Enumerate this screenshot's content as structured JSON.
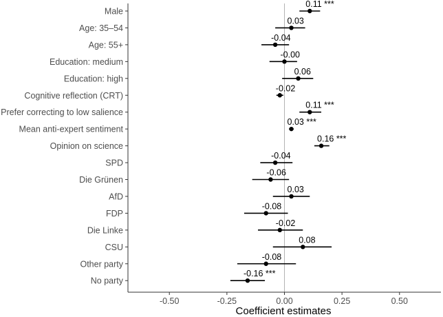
{
  "chart_data": {
    "type": "scatter",
    "subtype": "coefficient-plot",
    "xlabel": "Coefficient estimates",
    "ylabel": "",
    "xlim": [
      -0.68,
      0.68
    ],
    "xticks": [
      -0.5,
      -0.25,
      0.0,
      0.25,
      0.5
    ],
    "xtick_labels": [
      "-0.50",
      "-0.25",
      "0.00",
      "0.25",
      "0.50"
    ],
    "reference_line": 0,
    "grid": false,
    "colors": {
      "point": "#000000",
      "reference": "#b3b3b3",
      "axis": "#333333"
    },
    "categories": [
      "Male",
      "Age: 35–54",
      "Age: 55+",
      "Education: medium",
      "Education: high",
      "Cognitive reflection (CRT)",
      "Prefer correcting to low salience",
      "Mean anti-expert sentiment",
      "Opinion on science",
      "SPD",
      "Die Grünen",
      "AfD",
      "FDP",
      "Die Linke",
      "CSU",
      "Other party",
      "No party"
    ],
    "estimates": [
      {
        "label": "Male",
        "value": 0.11,
        "ci": [
          0.065,
          0.155
        ],
        "text": "0.11 ***"
      },
      {
        "label": "Age: 35–54",
        "value": 0.03,
        "ci": [
          -0.04,
          0.09
        ],
        "text": "0.03"
      },
      {
        "label": "Age: 55+",
        "value": -0.04,
        "ci": [
          -0.1,
          0.02
        ],
        "text": "-0.04"
      },
      {
        "label": "Education: medium",
        "value": -0.0,
        "ci": [
          -0.065,
          0.055
        ],
        "text": "-0.00"
      },
      {
        "label": "Education: high",
        "value": 0.06,
        "ci": [
          -0.01,
          0.125
        ],
        "text": "0.06"
      },
      {
        "label": "Cognitive reflection (CRT)",
        "value": -0.02,
        "ci": [
          -0.035,
          -0.005
        ],
        "text": "-0.02"
      },
      {
        "label": "Prefer correcting to low salience",
        "value": 0.11,
        "ci": [
          0.065,
          0.16
        ],
        "text": "0.11 ***"
      },
      {
        "label": "Mean anti-expert sentiment",
        "value": 0.03,
        "ci": [
          0.02,
          0.04
        ],
        "text": "0.03 ***"
      },
      {
        "label": "Opinion on science",
        "value": 0.16,
        "ci": [
          0.13,
          0.195
        ],
        "text": "0.16 ***"
      },
      {
        "label": "SPD",
        "value": -0.04,
        "ci": [
          -0.105,
          0.035
        ],
        "text": "-0.04"
      },
      {
        "label": "Die Grünen",
        "value": -0.06,
        "ci": [
          -0.14,
          0.02
        ],
        "text": "-0.06"
      },
      {
        "label": "AfD",
        "value": 0.03,
        "ci": [
          -0.05,
          0.11
        ],
        "text": "0.03"
      },
      {
        "label": "FDP",
        "value": -0.08,
        "ci": [
          -0.175,
          0.015
        ],
        "text": "-0.08"
      },
      {
        "label": "Die Linke",
        "value": -0.02,
        "ci": [
          -0.115,
          0.08
        ],
        "text": "-0.02"
      },
      {
        "label": "CSU",
        "value": 0.08,
        "ci": [
          -0.05,
          0.205
        ],
        "text": "0.08"
      },
      {
        "label": "Other party",
        "value": -0.08,
        "ci": [
          -0.205,
          0.05
        ],
        "text": "-0.08"
      },
      {
        "label": "No party",
        "value": -0.16,
        "ci": [
          -0.235,
          -0.085
        ],
        "text": "-0.16 ***"
      }
    ]
  }
}
